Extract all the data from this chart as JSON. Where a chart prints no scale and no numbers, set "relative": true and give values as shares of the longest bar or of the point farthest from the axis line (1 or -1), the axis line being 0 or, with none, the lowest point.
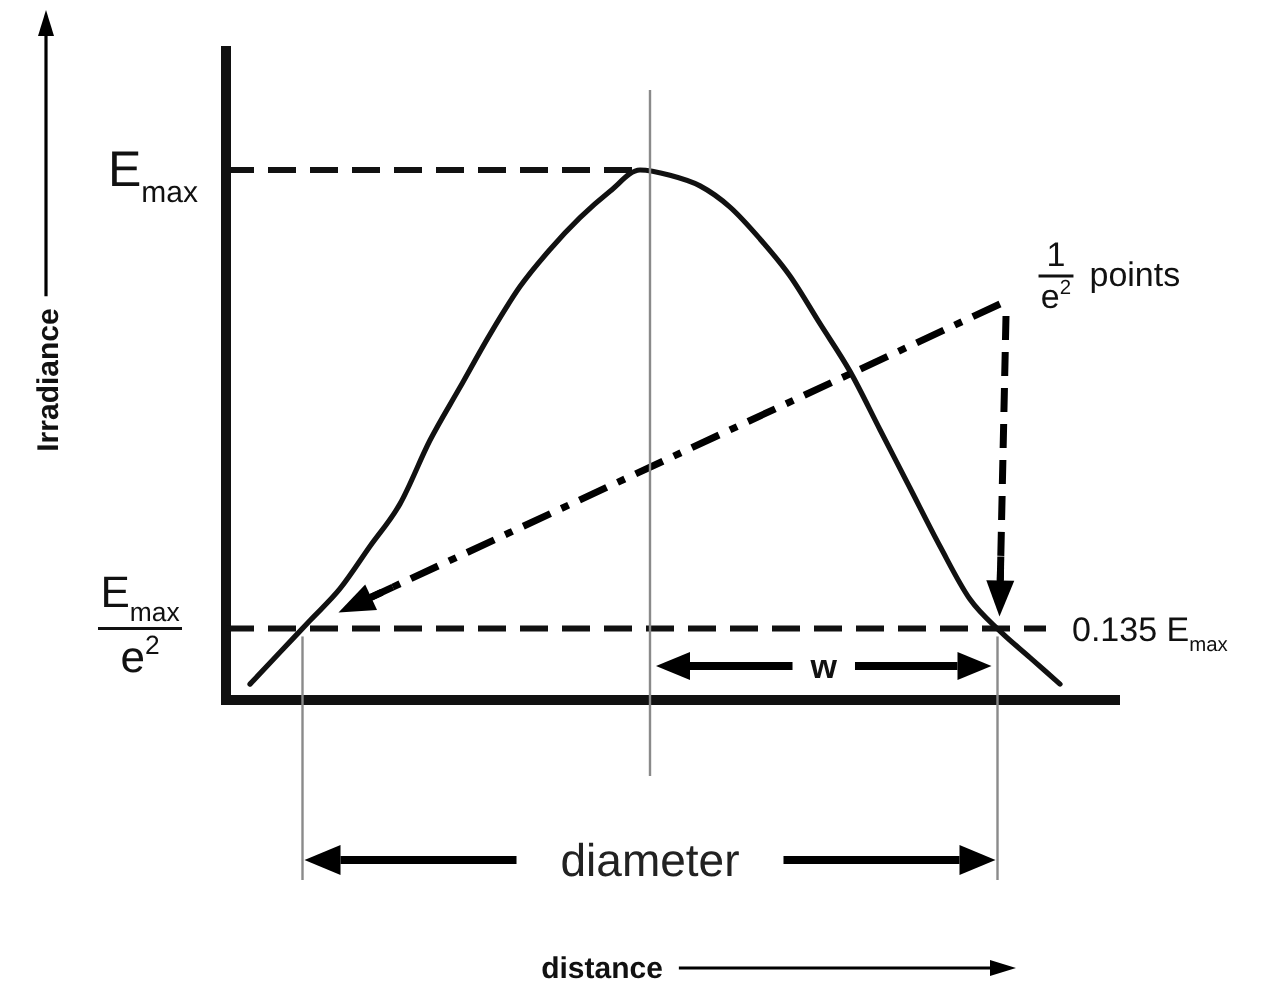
{
  "chart_data": {
    "type": "line",
    "relative": true,
    "categories": [
      null,
      null,
      null,
      null,
      null,
      null,
      null,
      null,
      null,
      null,
      null,
      null,
      null,
      null,
      null,
      null,
      null,
      null,
      null,
      null,
      null,
      null,
      null,
      null,
      null,
      null,
      null,
      null
    ],
    "values": [
      0.03,
      0.09,
      0.15,
      0.21,
      0.29,
      0.37,
      0.49,
      0.59,
      0.69,
      0.78,
      0.85,
      0.91,
      0.96,
      1,
      0.99,
      0.97,
      0.93,
      0.87,
      0.8,
      0.71,
      0.62,
      0.51,
      0.4,
      0.29,
      0.19,
      0.13,
      0.08,
      0.03
    ],
    "color": "#111111",
    "ref_lines": [
      {
        "axis": "y",
        "value": 1,
        "label": "E$_{max}$",
        "line_style": "dashed"
      },
      {
        "axis": "y",
        "value": 0.135,
        "label": "0.135 E$_{max}$",
        "line_style": "dashed"
      }
    ],
    "annotations": [
      "E$_{max}$\ne$^{2}$",
      "1\ne$^{2}$ points",
      "w",
      "diameter",
      "Irradiance",
      "distance"
    ]
  }
}
